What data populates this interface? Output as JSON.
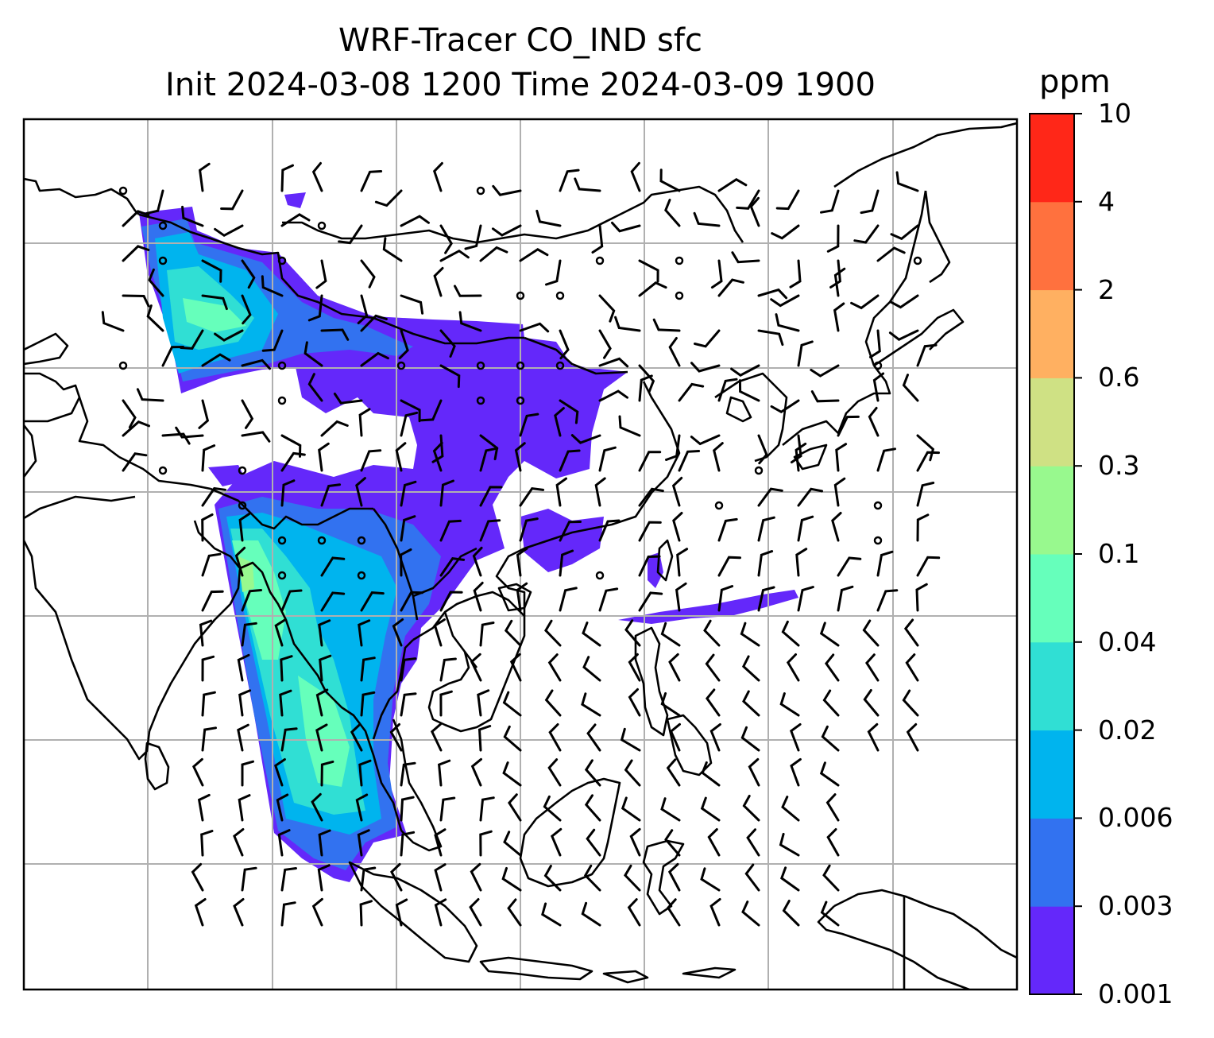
{
  "title": {
    "line1": "WRF-Tracer CO_IND sfc",
    "line2": "Init 2024-03-08 1200 Time 2024-03-09 1900"
  },
  "colorbar": {
    "unit": "ppm",
    "levels": [
      "0.001",
      "0.003",
      "0.006",
      "0.02",
      "0.04",
      "0.1",
      "0.3",
      "0.6",
      "2",
      "4",
      "10"
    ],
    "colors": [
      "#6428fa",
      "#3272f0",
      "#00b4ee",
      "#30dfd4",
      "#66ffbb",
      "#98f98e",
      "#cfe184",
      "#ffb061",
      "#ff713e",
      "#ff2718"
    ]
  },
  "map": {
    "gridlines": true,
    "background": "#ffffff",
    "coastline_color": "#000000",
    "grid_color": "#b0b0b0",
    "wind_symbols": "barbs"
  }
}
